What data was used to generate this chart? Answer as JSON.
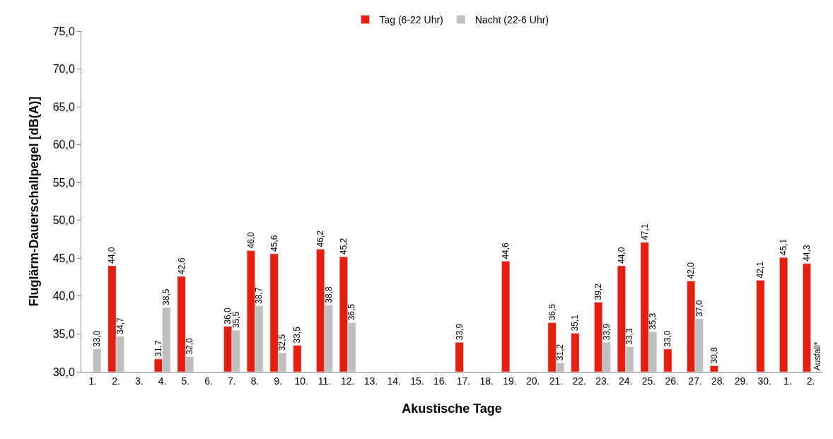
{
  "chart_data": {
    "type": "bar",
    "xlabel": "Akustische Tage",
    "ylabel": "Fluglärm-Dauerschallpegel [dB(A)]",
    "categories": [
      "1.",
      "2.",
      "3.",
      "4.",
      "5.",
      "6.",
      "7.",
      "8.",
      "9.",
      "10.",
      "11.",
      "12.",
      "13.",
      "14.",
      "15.",
      "16.",
      "17.",
      "18.",
      "19.",
      "20.",
      "21.",
      "22.",
      "23.",
      "24.",
      "25.",
      "26.",
      "27.",
      "28.",
      "29.",
      "30.",
      "1.",
      "2."
    ],
    "series": [
      {
        "name": "Tag (6-22 Uhr)",
        "color": "#e3200f",
        "values": [
          null,
          44.0,
          null,
          31.7,
          42.6,
          null,
          36.0,
          46.0,
          45.6,
          33.5,
          46.2,
          45.2,
          null,
          null,
          null,
          null,
          33.9,
          null,
          44.6,
          null,
          36.5,
          35.1,
          39.2,
          44.0,
          47.1,
          33.0,
          42.0,
          30.8,
          null,
          42.1,
          45.1,
          44.3
        ],
        "value_labels": [
          null,
          "44,0",
          null,
          "31,7",
          "42,6",
          null,
          "36,0",
          "46,0",
          "45,6",
          "33,5",
          "46,2",
          "45,2",
          null,
          null,
          null,
          null,
          "33,9",
          null,
          "44,6",
          null,
          "36,5",
          "35,1",
          "39,2",
          "44,0",
          "47,1",
          "33,0",
          "42,0",
          "30,8",
          null,
          "42,1",
          "45,1",
          "44,3"
        ]
      },
      {
        "name": "Nacht (22-6 Uhr)",
        "color": "#bfbfbf",
        "values": [
          33.0,
          34.7,
          null,
          38.5,
          32.0,
          null,
          35.5,
          38.7,
          32.5,
          null,
          38.8,
          36.5,
          null,
          null,
          null,
          null,
          null,
          null,
          null,
          null,
          31.2,
          null,
          33.9,
          33.3,
          35.3,
          null,
          37.0,
          null,
          null,
          null,
          null,
          null
        ],
        "value_labels": [
          "33,0",
          "34,7",
          null,
          "38,5",
          "32,0",
          null,
          "35,5",
          "38,7",
          "32,5",
          null,
          "38,8",
          "36,5",
          null,
          null,
          null,
          null,
          null,
          null,
          null,
          null,
          "31,2",
          null,
          "33,9",
          "33,3",
          "35,3",
          null,
          "37,0",
          null,
          null,
          null,
          null,
          null
        ]
      }
    ],
    "ylim": [
      30,
      75
    ],
    "yticks": [
      {
        "value": 30,
        "label": "30,0"
      },
      {
        "value": 35,
        "label": "35,0"
      },
      {
        "value": 40,
        "label": "40,0"
      },
      {
        "value": 45,
        "label": "45,0"
      },
      {
        "value": 50,
        "label": "50,0"
      },
      {
        "value": 55,
        "label": "55,0"
      },
      {
        "value": 60,
        "label": "60,0"
      },
      {
        "value": 65,
        "label": "65,0"
      },
      {
        "value": 70,
        "label": "70,0"
      },
      {
        "value": 75,
        "label": "75,0"
      }
    ],
    "annotations": [
      "Ausfall*"
    ],
    "legend": "top"
  }
}
